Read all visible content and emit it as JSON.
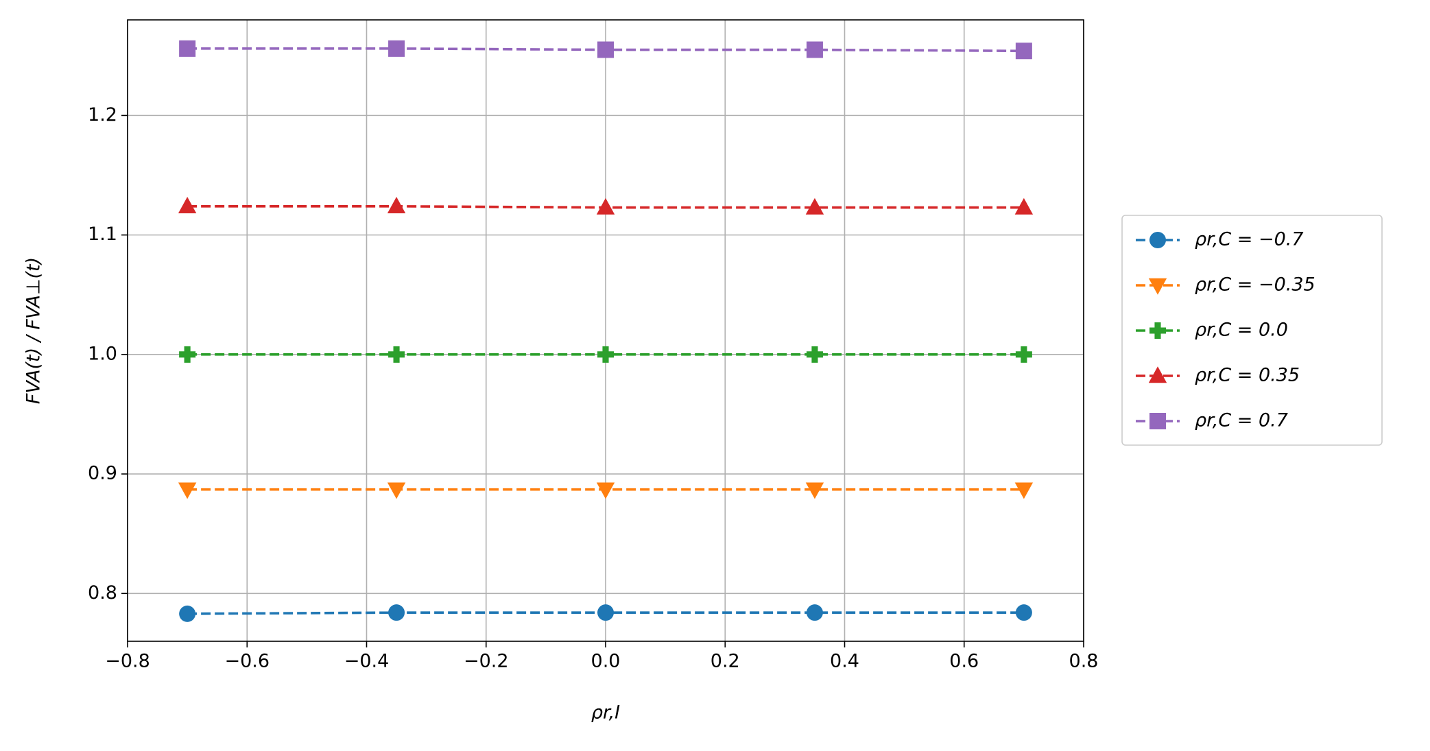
{
  "chart_data": {
    "type": "line",
    "xlabel": "ρr,I",
    "ylabel": "FVA(t) / FVA⊥(t)",
    "x": [
      -0.7,
      -0.35,
      0.0,
      0.35,
      0.7
    ],
    "series": [
      {
        "name": "ρr,C = −0.7",
        "color": "#1f77b4",
        "marker": "circle",
        "values": [
          0.783,
          0.784,
          0.784,
          0.784,
          0.784
        ]
      },
      {
        "name": "ρr,C = −0.35",
        "color": "#ff7f0e",
        "marker": "triangle-down",
        "values": [
          0.887,
          0.887,
          0.887,
          0.887,
          0.887
        ]
      },
      {
        "name": "ρr,C = 0.0",
        "color": "#2ca02c",
        "marker": "plus",
        "values": [
          1.0,
          1.0,
          1.0,
          1.0,
          1.0
        ]
      },
      {
        "name": "ρr,C = 0.35",
        "color": "#d62728",
        "marker": "triangle-up",
        "values": [
          1.124,
          1.124,
          1.123,
          1.123,
          1.123
        ]
      },
      {
        "name": "ρr,C = 0.7",
        "color": "#9467bd",
        "marker": "square",
        "values": [
          1.256,
          1.256,
          1.255,
          1.255,
          1.254
        ]
      }
    ],
    "xlim": [
      -0.8,
      0.8
    ],
    "ylim": [
      0.76,
      1.28
    ],
    "xticks": [
      {
        "value": -0.8,
        "label": "−0.8"
      },
      {
        "value": -0.6,
        "label": "−0.6"
      },
      {
        "value": -0.4,
        "label": "−0.4"
      },
      {
        "value": -0.2,
        "label": "−0.2"
      },
      {
        "value": 0.0,
        "label": "0.0"
      },
      0.2,
      0.4,
      0.6,
      0.8
    ],
    "yticks": [
      0.8,
      0.9,
      {
        "value": 1.0,
        "label": "1.0"
      },
      1.1,
      1.2
    ],
    "grid": true,
    "legend": "outside-right"
  }
}
